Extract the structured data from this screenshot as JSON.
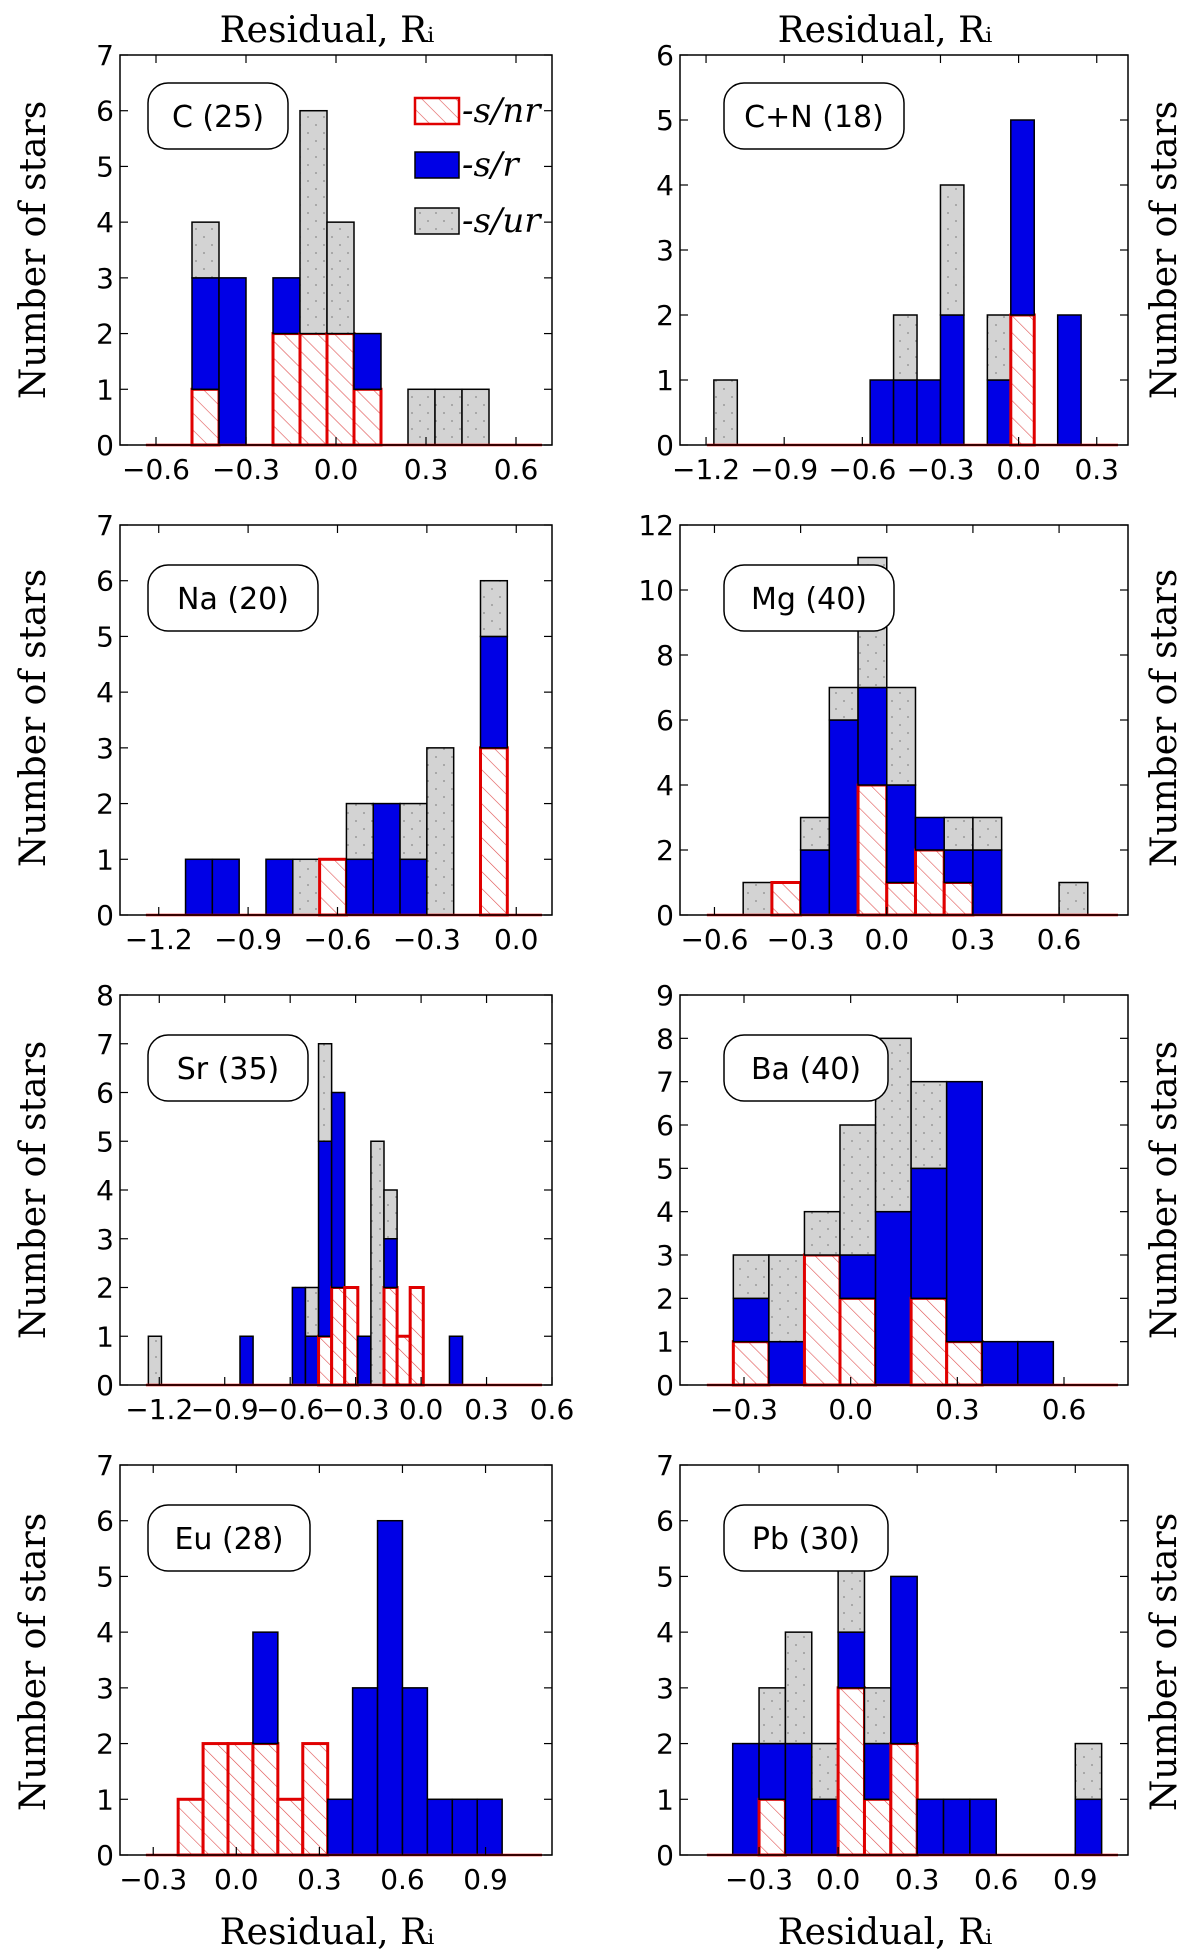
{
  "figure": {
    "top_xlabel": "Residual, Rᵢ",
    "bottom_xlabel": "Residual, Rᵢ",
    "ylabel": "Number of stars"
  },
  "legend": {
    "items": [
      {
        "key": "nr",
        "label": "-s/nr"
      },
      {
        "key": "r",
        "label": "-s/r"
      },
      {
        "key": "ur",
        "label": "-s/ur"
      }
    ]
  },
  "colors": {
    "nr_edge": "#e00000",
    "nr_hatch": "#e05050",
    "r_fill": "#0000e6",
    "ur_fill": "#d3d3d3",
    "edge": "#000000"
  },
  "chart_data": [
    {
      "type": "bar",
      "stacked": true,
      "label": "C (25)",
      "xlim": [
        -0.72,
        0.72
      ],
      "ylim": [
        0,
        7
      ],
      "xticks": [
        -0.6,
        -0.3,
        0.0,
        0.3,
        0.6
      ],
      "xtick_labels": [
        "−0.6",
        "−0.3",
        "0.0",
        "0.3",
        "0.6"
      ],
      "yticks": [
        0,
        1,
        2,
        3,
        4,
        5,
        6,
        7
      ],
      "bins": [
        {
          "x0": -0.48,
          "x1": -0.39,
          "nr": 1,
          "r": 2,
          "ur": 1
        },
        {
          "x0": -0.39,
          "x1": -0.3,
          "nr": 0,
          "r": 3,
          "ur": 0
        },
        {
          "x0": -0.21,
          "x1": -0.12,
          "nr": 2,
          "r": 1,
          "ur": 0
        },
        {
          "x0": -0.12,
          "x1": -0.03,
          "nr": 2,
          "r": 0,
          "ur": 4
        },
        {
          "x0": -0.03,
          "x1": 0.06,
          "nr": 2,
          "r": 0,
          "ur": 2
        },
        {
          "x0": 0.06,
          "x1": 0.15,
          "nr": 1,
          "r": 1,
          "ur": 0
        },
        {
          "x0": 0.24,
          "x1": 0.33,
          "nr": 0,
          "r": 0,
          "ur": 1
        },
        {
          "x0": 0.33,
          "x1": 0.42,
          "nr": 0,
          "r": 0,
          "ur": 1
        },
        {
          "x0": 0.42,
          "x1": 0.51,
          "nr": 0,
          "r": 0,
          "ur": 1
        }
      ]
    },
    {
      "type": "bar",
      "stacked": true,
      "label": "C+N (18)",
      "xlim": [
        -1.3,
        0.42
      ],
      "ylim": [
        0,
        6
      ],
      "xticks": [
        -1.2,
        -0.9,
        -0.6,
        -0.3,
        0.0,
        0.3
      ],
      "xtick_labels": [
        "−1.2",
        "−0.9",
        "−0.6",
        "−0.3",
        "0.0",
        "0.3"
      ],
      "yticks": [
        0,
        1,
        2,
        3,
        4,
        5,
        6
      ],
      "bins": [
        {
          "x0": -1.17,
          "x1": -1.08,
          "nr": 0,
          "r": 0,
          "ur": 1
        },
        {
          "x0": -0.57,
          "x1": -0.48,
          "nr": 0,
          "r": 1,
          "ur": 0
        },
        {
          "x0": -0.48,
          "x1": -0.39,
          "nr": 0,
          "r": 1,
          "ur": 1
        },
        {
          "x0": -0.39,
          "x1": -0.3,
          "nr": 0,
          "r": 1,
          "ur": 0
        },
        {
          "x0": -0.3,
          "x1": -0.21,
          "nr": 0,
          "r": 2,
          "ur": 2
        },
        {
          "x0": -0.12,
          "x1": -0.03,
          "nr": 0,
          "r": 1,
          "ur": 1
        },
        {
          "x0": -0.03,
          "x1": 0.06,
          "nr": 2,
          "r": 3,
          "ur": 0
        },
        {
          "x0": 0.15,
          "x1": 0.24,
          "nr": 0,
          "r": 2,
          "ur": 0
        }
      ]
    },
    {
      "type": "bar",
      "stacked": true,
      "label": "Na (20)",
      "xlim": [
        -1.33,
        0.12
      ],
      "ylim": [
        0,
        7
      ],
      "xticks": [
        -1.2,
        -0.9,
        -0.6,
        -0.3,
        0.0
      ],
      "xtick_labels": [
        "−1.2",
        "−0.9",
        "−0.6",
        "−0.3",
        "0.0"
      ],
      "yticks": [
        0,
        1,
        2,
        3,
        4,
        5,
        6,
        7
      ],
      "bins": [
        {
          "x0": -1.11,
          "x1": -1.02,
          "nr": 0,
          "r": 1,
          "ur": 0
        },
        {
          "x0": -1.02,
          "x1": -0.93,
          "nr": 0,
          "r": 1,
          "ur": 0
        },
        {
          "x0": -0.84,
          "x1": -0.75,
          "nr": 0,
          "r": 1,
          "ur": 0
        },
        {
          "x0": -0.75,
          "x1": -0.66,
          "nr": 0,
          "r": 0,
          "ur": 1
        },
        {
          "x0": -0.66,
          "x1": -0.57,
          "nr": 1,
          "r": 0,
          "ur": 0
        },
        {
          "x0": -0.57,
          "x1": -0.48,
          "nr": 0,
          "r": 1,
          "ur": 1
        },
        {
          "x0": -0.48,
          "x1": -0.39,
          "nr": 0,
          "r": 2,
          "ur": 0
        },
        {
          "x0": -0.39,
          "x1": -0.3,
          "nr": 0,
          "r": 1,
          "ur": 1
        },
        {
          "x0": -0.3,
          "x1": -0.21,
          "nr": 0,
          "r": 0,
          "ur": 3
        },
        {
          "x0": -0.12,
          "x1": -0.03,
          "nr": 3,
          "r": 2,
          "ur": 1
        }
      ]
    },
    {
      "type": "bar",
      "stacked": true,
      "label": "Mg (40)",
      "xlim": [
        -0.72,
        0.84
      ],
      "ylim": [
        0,
        12
      ],
      "xticks": [
        -0.6,
        -0.3,
        0.0,
        0.3,
        0.6
      ],
      "xtick_labels": [
        "−0.6",
        "−0.3",
        "0.0",
        "0.3",
        "0.6"
      ],
      "yticks": [
        0,
        2,
        4,
        6,
        8,
        10,
        12
      ],
      "bins": [
        {
          "x0": -0.5,
          "x1": -0.4,
          "nr": 0,
          "r": 0,
          "ur": 1
        },
        {
          "x0": -0.4,
          "x1": -0.3,
          "nr": 1,
          "r": 0,
          "ur": 0
        },
        {
          "x0": -0.3,
          "x1": -0.2,
          "nr": 0,
          "r": 2,
          "ur": 1
        },
        {
          "x0": -0.2,
          "x1": -0.1,
          "nr": 0,
          "r": 6,
          "ur": 1
        },
        {
          "x0": -0.1,
          "x1": 0.0,
          "nr": 4,
          "r": 3,
          "ur": 4
        },
        {
          "x0": 0.0,
          "x1": 0.1,
          "nr": 1,
          "r": 3,
          "ur": 3
        },
        {
          "x0": 0.1,
          "x1": 0.2,
          "nr": 2,
          "r": 1,
          "ur": 0
        },
        {
          "x0": 0.2,
          "x1": 0.3,
          "nr": 1,
          "r": 1,
          "ur": 1
        },
        {
          "x0": 0.3,
          "x1": 0.4,
          "nr": 0,
          "r": 2,
          "ur": 1
        },
        {
          "x0": 0.6,
          "x1": 0.7,
          "nr": 0,
          "r": 0,
          "ur": 1
        }
      ]
    },
    {
      "type": "bar",
      "stacked": true,
      "label": "Sr (35)",
      "xlim": [
        -1.38,
        0.6
      ],
      "ylim": [
        0,
        8
      ],
      "xticks": [
        -1.2,
        -0.9,
        -0.6,
        -0.3,
        0.0,
        0.3,
        0.6
      ],
      "xtick_labels": [
        "−1.2",
        "−0.9",
        "−0.6",
        "−0.3",
        "0.0",
        "0.3",
        "0.6"
      ],
      "yticks": [
        0,
        1,
        2,
        3,
        4,
        5,
        6,
        7,
        8
      ],
      "bins": [
        {
          "x0": -1.25,
          "x1": -1.19,
          "nr": 0,
          "r": 0,
          "ur": 1
        },
        {
          "x0": -0.83,
          "x1": -0.77,
          "nr": 0,
          "r": 1,
          "ur": 0
        },
        {
          "x0": -0.59,
          "x1": -0.53,
          "nr": 0,
          "r": 2,
          "ur": 0
        },
        {
          "x0": -0.53,
          "x1": -0.47,
          "nr": 0,
          "r": 1,
          "ur": 1
        },
        {
          "x0": -0.47,
          "x1": -0.41,
          "nr": 1,
          "r": 4,
          "ur": 2
        },
        {
          "x0": -0.41,
          "x1": -0.35,
          "nr": 2,
          "r": 4,
          "ur": 0
        },
        {
          "x0": -0.35,
          "x1": -0.29,
          "nr": 2,
          "r": 0,
          "ur": 0
        },
        {
          "x0": -0.29,
          "x1": -0.23,
          "nr": 0,
          "r": 1,
          "ur": 0
        },
        {
          "x0": -0.23,
          "x1": -0.17,
          "nr": 0,
          "r": 0,
          "ur": 5
        },
        {
          "x0": -0.17,
          "x1": -0.11,
          "nr": 2,
          "r": 1,
          "ur": 1
        },
        {
          "x0": -0.11,
          "x1": -0.05,
          "nr": 1,
          "r": 0,
          "ur": 0
        },
        {
          "x0": -0.05,
          "x1": 0.01,
          "nr": 2,
          "r": 0,
          "ur": 0
        },
        {
          "x0": 0.13,
          "x1": 0.19,
          "nr": 0,
          "r": 1,
          "ur": 0
        }
      ]
    },
    {
      "type": "bar",
      "stacked": true,
      "label": "Ba (40)",
      "xlim": [
        -0.48,
        0.78
      ],
      "ylim": [
        0,
        9
      ],
      "xticks": [
        -0.3,
        0.0,
        0.3,
        0.6
      ],
      "xtick_labels": [
        "−0.3",
        "0.0",
        "0.3",
        "0.6"
      ],
      "yticks": [
        0,
        1,
        2,
        3,
        4,
        5,
        6,
        7,
        8,
        9
      ],
      "bins": [
        {
          "x0": -0.33,
          "x1": -0.23,
          "nr": 1,
          "r": 1,
          "ur": 1
        },
        {
          "x0": -0.23,
          "x1": -0.13,
          "nr": 0,
          "r": 1,
          "ur": 2
        },
        {
          "x0": -0.13,
          "x1": -0.03,
          "nr": 3,
          "r": 0,
          "ur": 1
        },
        {
          "x0": -0.03,
          "x1": 0.07,
          "nr": 2,
          "r": 1,
          "ur": 3
        },
        {
          "x0": 0.07,
          "x1": 0.17,
          "nr": 0,
          "r": 4,
          "ur": 4
        },
        {
          "x0": 0.17,
          "x1": 0.27,
          "nr": 2,
          "r": 3,
          "ur": 2
        },
        {
          "x0": 0.27,
          "x1": 0.37,
          "nr": 1,
          "r": 6,
          "ur": 0
        },
        {
          "x0": 0.37,
          "x1": 0.47,
          "nr": 0,
          "r": 1,
          "ur": 0
        },
        {
          "x0": 0.47,
          "x1": 0.57,
          "nr": 0,
          "r": 1,
          "ur": 0
        }
      ]
    },
    {
      "type": "bar",
      "stacked": true,
      "label": "Eu (28)",
      "xlim": [
        -0.42,
        1.14
      ],
      "ylim": [
        0,
        7
      ],
      "xticks": [
        -0.3,
        0.0,
        0.3,
        0.6,
        0.9
      ],
      "xtick_labels": [
        "−0.3",
        "0.0",
        "0.3",
        "0.6",
        "0.9"
      ],
      "yticks": [
        0,
        1,
        2,
        3,
        4,
        5,
        6,
        7
      ],
      "bins": [
        {
          "x0": -0.21,
          "x1": -0.12,
          "nr": 1,
          "r": 0,
          "ur": 0
        },
        {
          "x0": -0.12,
          "x1": -0.03,
          "nr": 2,
          "r": 0,
          "ur": 0
        },
        {
          "x0": -0.03,
          "x1": 0.06,
          "nr": 2,
          "r": 0,
          "ur": 0
        },
        {
          "x0": 0.06,
          "x1": 0.15,
          "nr": 2,
          "r": 2,
          "ur": 0
        },
        {
          "x0": 0.15,
          "x1": 0.24,
          "nr": 1,
          "r": 0,
          "ur": 0
        },
        {
          "x0": 0.24,
          "x1": 0.33,
          "nr": 2,
          "r": 0,
          "ur": 0
        },
        {
          "x0": 0.33,
          "x1": 0.42,
          "nr": 0,
          "r": 1,
          "ur": 0
        },
        {
          "x0": 0.42,
          "x1": 0.51,
          "nr": 0,
          "r": 3,
          "ur": 0
        },
        {
          "x0": 0.51,
          "x1": 0.6,
          "nr": 0,
          "r": 6,
          "ur": 0
        },
        {
          "x0": 0.6,
          "x1": 0.69,
          "nr": 0,
          "r": 3,
          "ur": 0
        },
        {
          "x0": 0.69,
          "x1": 0.78,
          "nr": 0,
          "r": 1,
          "ur": 0
        },
        {
          "x0": 0.78,
          "x1": 0.87,
          "nr": 0,
          "r": 1,
          "ur": 0
        },
        {
          "x0": 0.87,
          "x1": 0.96,
          "nr": 0,
          "r": 1,
          "ur": 0
        }
      ]
    },
    {
      "type": "bar",
      "stacked": true,
      "label": "Pb (30)",
      "xlim": [
        -0.6,
        1.1
      ],
      "ylim": [
        0,
        7
      ],
      "xticks": [
        -0.3,
        0.0,
        0.3,
        0.6,
        0.9
      ],
      "xtick_labels": [
        "−0.3",
        "0.0",
        "0.3",
        "0.6",
        "0.9"
      ],
      "yticks": [
        0,
        1,
        2,
        3,
        4,
        5,
        6,
        7
      ],
      "bins": [
        {
          "x0": -0.4,
          "x1": -0.3,
          "nr": 0,
          "r": 2,
          "ur": 0
        },
        {
          "x0": -0.3,
          "x1": -0.2,
          "nr": 1,
          "r": 1,
          "ur": 1
        },
        {
          "x0": -0.2,
          "x1": -0.1,
          "nr": 0,
          "r": 2,
          "ur": 2
        },
        {
          "x0": -0.1,
          "x1": 0.0,
          "nr": 0,
          "r": 1,
          "ur": 1
        },
        {
          "x0": 0.0,
          "x1": 0.1,
          "nr": 3,
          "r": 1,
          "ur": 2
        },
        {
          "x0": 0.1,
          "x1": 0.2,
          "nr": 1,
          "r": 1,
          "ur": 1
        },
        {
          "x0": 0.2,
          "x1": 0.3,
          "nr": 2,
          "r": 3,
          "ur": 0
        },
        {
          "x0": 0.3,
          "x1": 0.4,
          "nr": 0,
          "r": 1,
          "ur": 0
        },
        {
          "x0": 0.4,
          "x1": 0.5,
          "nr": 0,
          "r": 1,
          "ur": 0
        },
        {
          "x0": 0.5,
          "x1": 0.6,
          "nr": 0,
          "r": 1,
          "ur": 0
        },
        {
          "x0": 0.9,
          "x1": 1.0,
          "nr": 0,
          "r": 1,
          "ur": 1
        }
      ]
    }
  ]
}
